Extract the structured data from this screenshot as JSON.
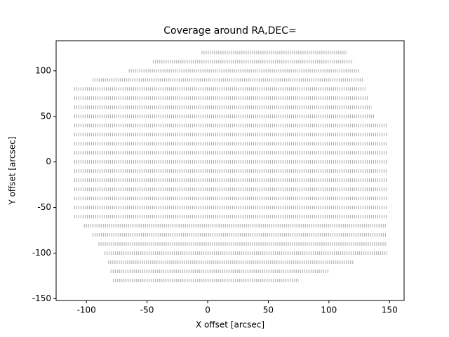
{
  "chart_data": {
    "type": "line",
    "title": "Coverage around RA,DEC=",
    "x_label": "X offset [arcsec]",
    "y_label": "Y offset [arcsec]",
    "xlim": [
      -125,
      162
    ],
    "ylim": [
      -152,
      133
    ],
    "xticks": [
      -100,
      -50,
      0,
      50,
      100,
      150
    ],
    "yticks": [
      -150,
      -100,
      -50,
      0,
      50,
      100
    ],
    "color": "#000000",
    "series": [
      {
        "x": [
          -5,
          115
        ],
        "values": [
          120,
          120
        ]
      },
      {
        "x": [
          -45,
          120
        ],
        "values": [
          110,
          110
        ]
      },
      {
        "x": [
          -65,
          125
        ],
        "values": [
          100,
          100
        ]
      },
      {
        "x": [
          -95,
          128
        ],
        "values": [
          90,
          90
        ]
      },
      {
        "x": [
          -110,
          130
        ],
        "values": [
          80,
          80
        ]
      },
      {
        "x": [
          -110,
          132
        ],
        "values": [
          70,
          70
        ]
      },
      {
        "x": [
          -110,
          135
        ],
        "values": [
          60,
          60
        ]
      },
      {
        "x": [
          -110,
          138
        ],
        "values": [
          50,
          50
        ]
      },
      {
        "x": [
          -110,
          148
        ],
        "values": [
          40,
          40
        ]
      },
      {
        "x": [
          -110,
          148
        ],
        "values": [
          30,
          30
        ]
      },
      {
        "x": [
          -110,
          148
        ],
        "values": [
          20,
          20
        ]
      },
      {
        "x": [
          -110,
          148
        ],
        "values": [
          10,
          10
        ]
      },
      {
        "x": [
          -110,
          148
        ],
        "values": [
          0,
          0
        ]
      },
      {
        "x": [
          -110,
          148
        ],
        "values": [
          -10,
          -10
        ]
      },
      {
        "x": [
          -110,
          148
        ],
        "values": [
          -20,
          -20
        ]
      },
      {
        "x": [
          -110,
          148
        ],
        "values": [
          -30,
          -30
        ]
      },
      {
        "x": [
          -110,
          148
        ],
        "values": [
          -40,
          -40
        ]
      },
      {
        "x": [
          -110,
          148
        ],
        "values": [
          -50,
          -50
        ]
      },
      {
        "x": [
          -110,
          148
        ],
        "values": [
          -60,
          -60
        ]
      },
      {
        "x": [
          -102,
          148
        ],
        "values": [
          -70,
          -70
        ]
      },
      {
        "x": [
          -95,
          148
        ],
        "values": [
          -80,
          -80
        ]
      },
      {
        "x": [
          -90,
          148
        ],
        "values": [
          -90,
          -90
        ]
      },
      {
        "x": [
          -85,
          148
        ],
        "values": [
          -100,
          -100
        ]
      },
      {
        "x": [
          -82,
          120
        ],
        "values": [
          -110,
          -110
        ]
      },
      {
        "x": [
          -80,
          100
        ],
        "values": [
          -120,
          -120
        ]
      },
      {
        "x": [
          -78,
          75
        ],
        "values": [
          -130,
          -130
        ]
      }
    ]
  }
}
